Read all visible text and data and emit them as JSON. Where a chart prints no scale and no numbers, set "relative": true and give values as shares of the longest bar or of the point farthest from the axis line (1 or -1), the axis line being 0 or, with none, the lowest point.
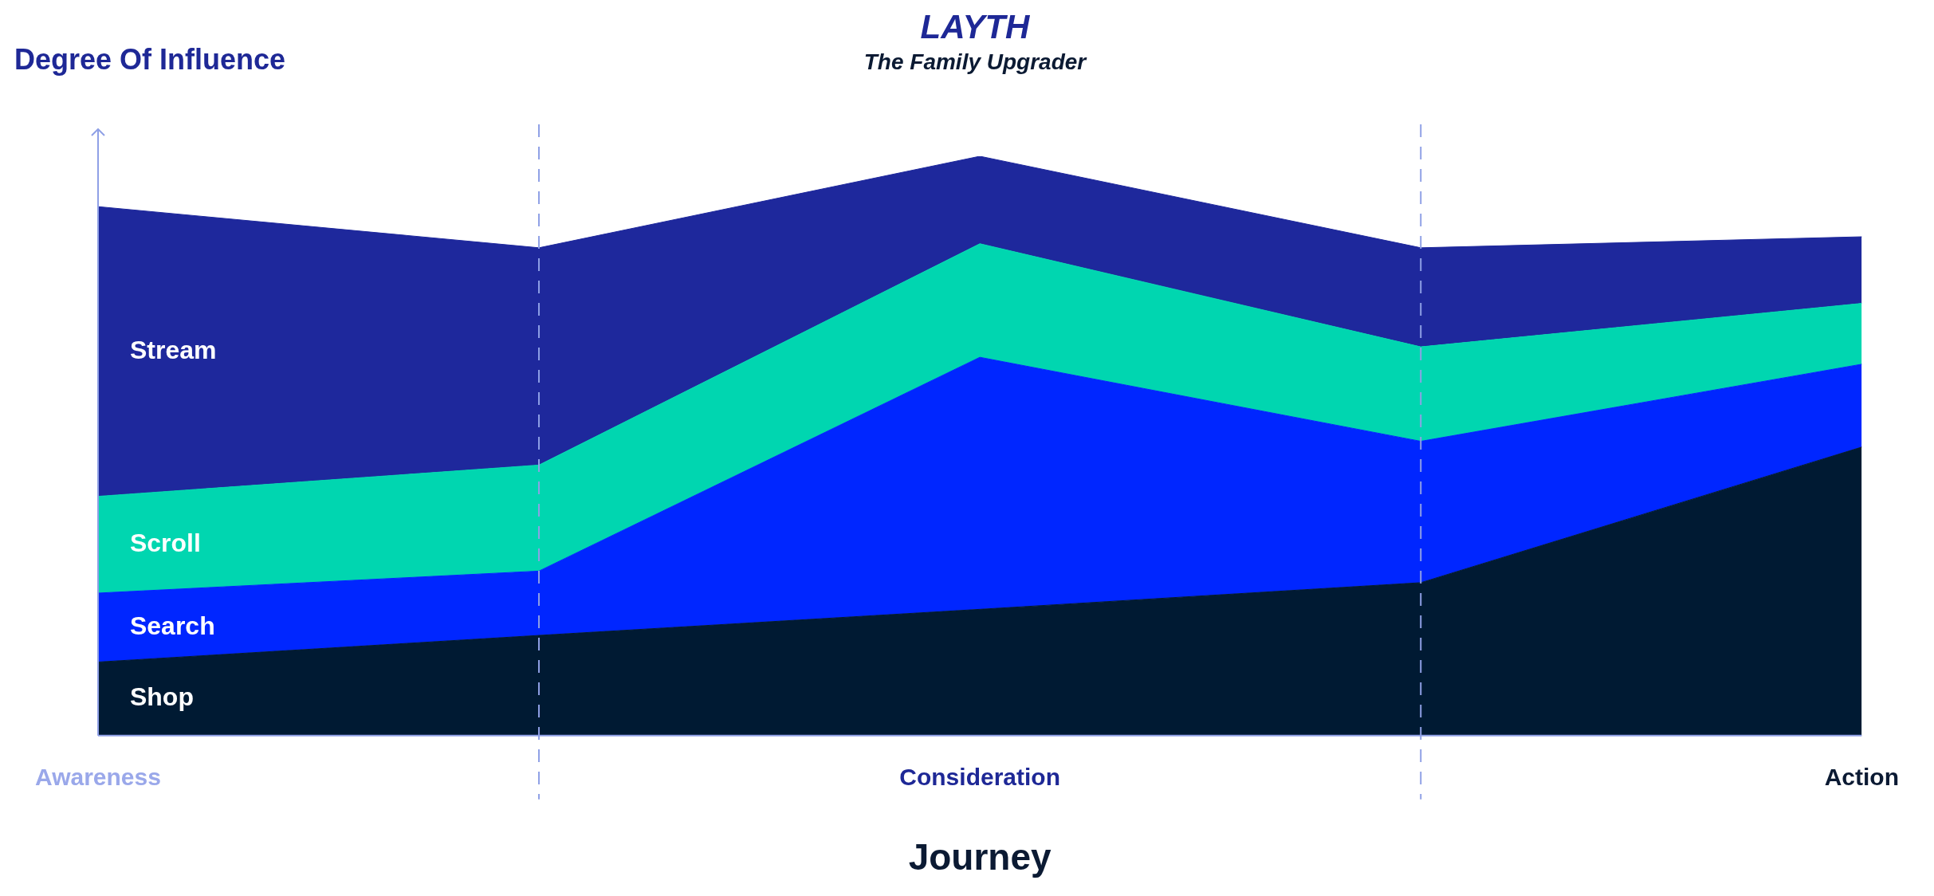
{
  "chart_data": {
    "type": "area",
    "title": "LAYTH",
    "subtitle": "The Family Upgrader",
    "ylabel": "Degree Of Influence",
    "xlabel": "Journey",
    "relative": true,
    "stacked": true,
    "legend": false,
    "grid": "x",
    "categories": [
      "Awareness",
      null,
      "Consideration",
      null,
      "Action"
    ],
    "series": [
      {
        "name": "Shop",
        "color": "#001a33",
        "values": [
          0.127,
          0.173,
          0.218,
          0.264,
          0.498
        ]
      },
      {
        "name": "Search",
        "color": "#0026ff",
        "values": [
          0.119,
          0.111,
          0.435,
          0.244,
          0.143
        ]
      },
      {
        "name": "Scroll",
        "color": "#00d6b0",
        "values": [
          0.167,
          0.183,
          0.196,
          0.163,
          0.105
        ]
      },
      {
        "name": "Stream",
        "color": "#1e289c",
        "values": [
          0.5,
          0.375,
          0.151,
          0.171,
          0.115
        ]
      }
    ]
  }
}
